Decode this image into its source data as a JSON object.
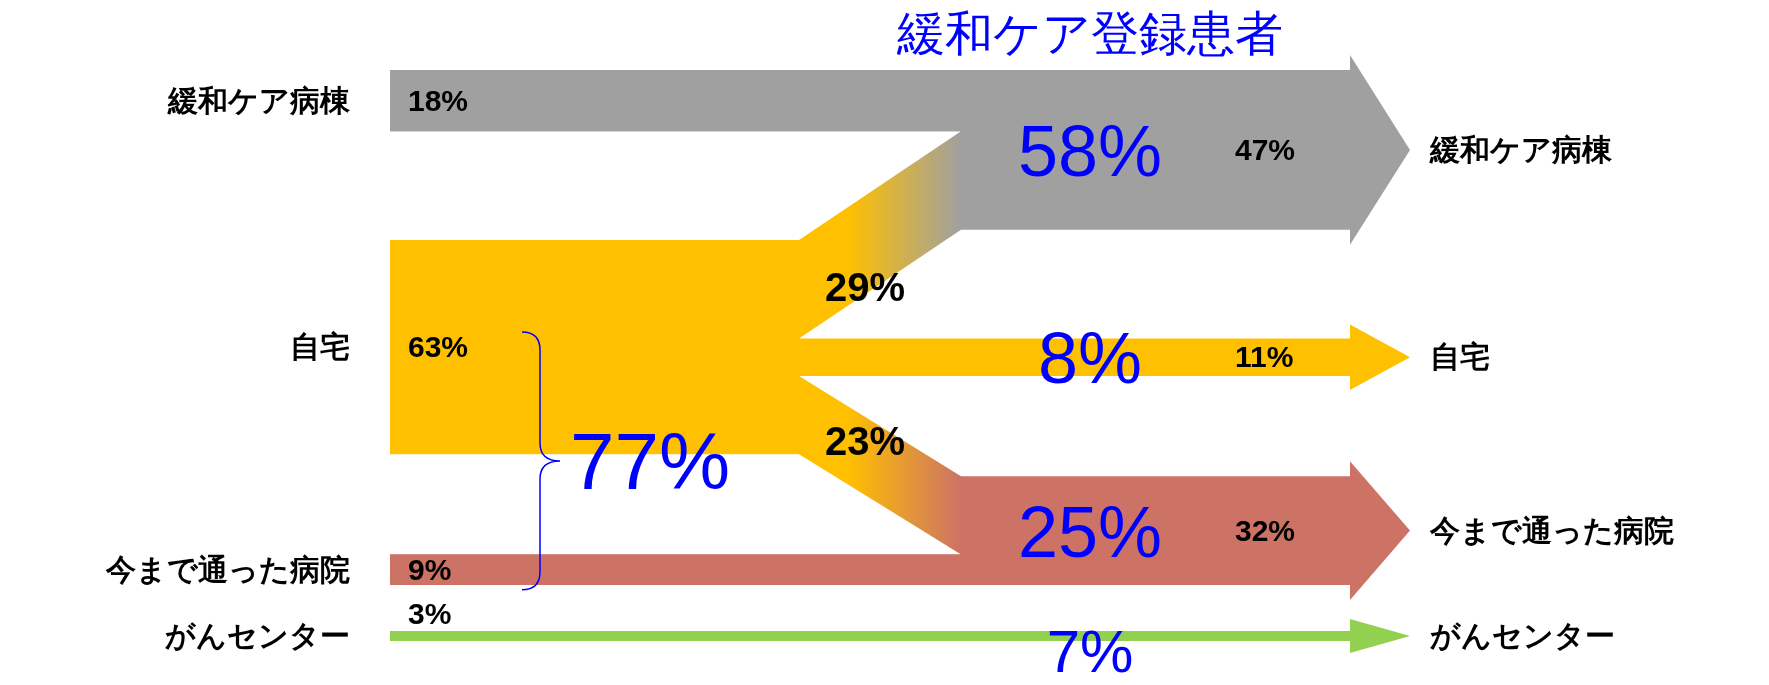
{
  "chart_data": {
    "type": "other",
    "title": "緩和ケア登録患者",
    "categories": [
      "緩和ケア病棟",
      "自宅",
      "今まで通った病院",
      "がんセンター"
    ],
    "series": [
      {
        "colors": [
          "#a0a0a0",
          "#ffc000",
          "#cc7366",
          "#92d050"
        ],
        "values": [
          18,
          63,
          9,
          3
        ],
        "value_labels": [
          "18%",
          "63%",
          "9%",
          "3%"
        ]
      },
      {
        "colors": [
          "#a0a0a0",
          "#ffc000",
          "#cc7366",
          null
        ],
        "values": [
          47,
          11,
          32,
          null
        ],
        "value_labels": [
          "47%",
          "11%",
          "32%",
          null
        ]
      },
      {
        "color": "#0000ff",
        "values": [
          58,
          8,
          25,
          7
        ],
        "value_labels": [
          "58%",
          "8%",
          "25%",
          "7%"
        ]
      }
    ],
    "annotations": [
      "29%",
      "23%",
      "77%"
    ]
  }
}
